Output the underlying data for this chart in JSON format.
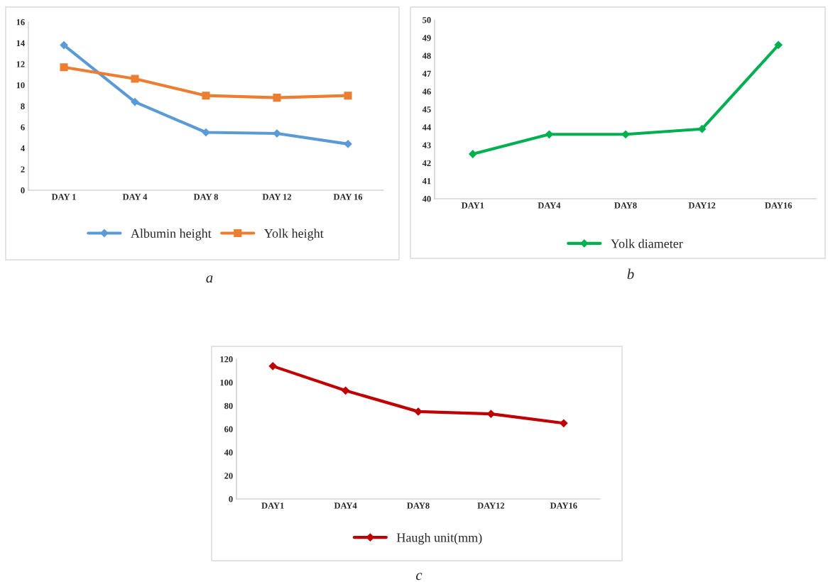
{
  "chart_data": [
    {
      "type": "line",
      "categories": [
        "DAY 1",
        "DAY 4",
        "DAY 8",
        "DAY 12",
        "DAY 16"
      ],
      "ylim": [
        0,
        16
      ],
      "yticks": [
        0,
        2,
        4,
        6,
        8,
        10,
        12,
        14,
        16
      ],
      "grid": false,
      "legend": "bottom",
      "annotations": [
        "a"
      ],
      "series": [
        {
          "name": "Albumin height",
          "color": "#5b9bd5",
          "marker": "diamond",
          "values": [
            13.8,
            8.4,
            5.5,
            5.4,
            4.4
          ]
        },
        {
          "name": "Yolk height",
          "color": "#ed7d31",
          "marker": "square",
          "values": [
            11.7,
            10.6,
            9.0,
            8.8,
            9.0
          ]
        }
      ]
    },
    {
      "type": "line",
      "categories": [
        "DAY1",
        "DAY4",
        "DAY8",
        "DAY12",
        "DAY16"
      ],
      "ylim": [
        40,
        50
      ],
      "yticks": [
        40,
        41,
        42,
        43,
        44,
        45,
        46,
        47,
        48,
        49,
        50
      ],
      "grid": false,
      "legend": "bottom",
      "annotations": [
        "b"
      ],
      "series": [
        {
          "name": "Yolk diameter",
          "color": "#00b050",
          "marker": "diamond",
          "values": [
            42.5,
            43.6,
            43.6,
            43.9,
            48.6
          ]
        }
      ]
    },
    {
      "type": "line",
      "categories": [
        "DAY1",
        "DAY4",
        "DAY8",
        "DAY12",
        "DAY16"
      ],
      "ylim": [
        0,
        120
      ],
      "yticks": [
        0,
        20,
        40,
        60,
        80,
        100,
        120
      ],
      "grid": false,
      "legend": "bottom",
      "annotations": [
        "c"
      ],
      "series": [
        {
          "name": "Haugh unit(mm)",
          "color": "#c00000",
          "marker": "diamond",
          "values": [
            114,
            93,
            75,
            73,
            65
          ]
        }
      ]
    }
  ]
}
